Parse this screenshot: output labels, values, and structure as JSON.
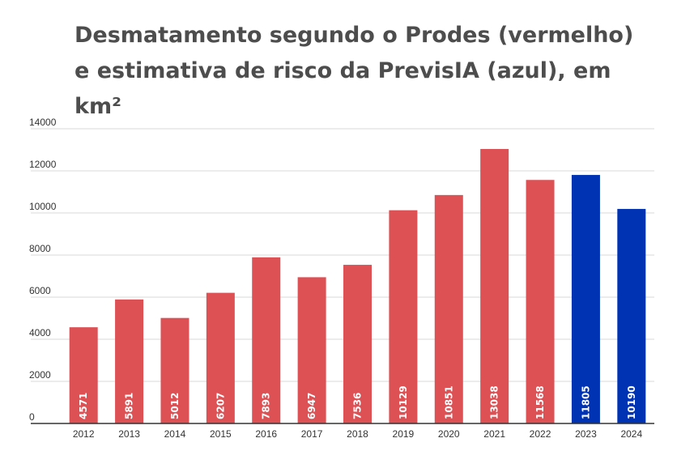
{
  "chart_data": {
    "type": "bar",
    "title": "Desmatamento segundo o Prodes (vermelho) e estimativa de risco da PrevisIA (azul), em km²",
    "xlabel": "",
    "ylabel": "",
    "ylim": [
      0,
      14000
    ],
    "yticks": [
      0,
      2000,
      4000,
      6000,
      8000,
      10000,
      12000,
      14000
    ],
    "grid": true,
    "legend": "none",
    "categories": [
      "2012",
      "2013",
      "2014",
      "2015",
      "2016",
      "2017",
      "2018",
      "2019",
      "2020",
      "2021",
      "2022",
      "2023",
      "2024"
    ],
    "values": [
      4571,
      5891,
      5012,
      6207,
      7893,
      6947,
      7536,
      10129,
      10851,
      13038,
      11568,
      11805,
      10190
    ],
    "bar_colors": [
      "#dd5155",
      "#dd5155",
      "#dd5155",
      "#dd5155",
      "#dd5155",
      "#dd5155",
      "#dd5155",
      "#dd5155",
      "#dd5155",
      "#dd5155",
      "#dd5155",
      "#0032b4",
      "#0032b4"
    ],
    "data_labels": [
      "4571",
      "5891",
      "5012",
      "6207",
      "7893",
      "6947",
      "7536",
      "10129",
      "10851",
      "13038",
      "11568",
      "11805",
      "10190"
    ]
  },
  "colors": {
    "prodes": "#dd5155",
    "previsia": "#0032b4",
    "grid": "#d9d9d9",
    "axis": "#333333"
  }
}
